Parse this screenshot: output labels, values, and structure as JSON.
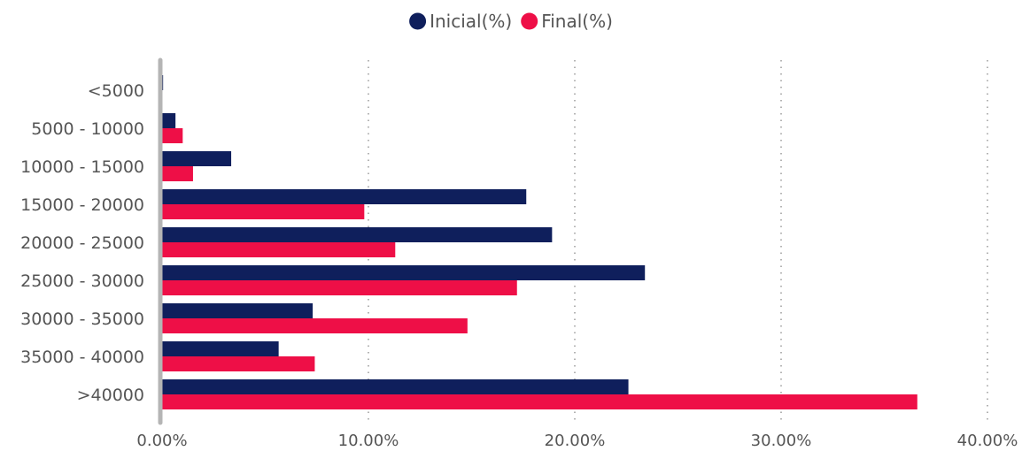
{
  "chart_data": {
    "type": "bar",
    "orientation": "horizontal",
    "categories": [
      "<5000",
      "5000 - 10000",
      "10000 - 15000",
      "15000 - 20000",
      "20000 - 25000",
      "25000 - 30000",
      "30000 - 35000",
      "35000 - 40000",
      ">40000"
    ],
    "series": [
      {
        "name": "Inicial(%)",
        "color": "#0f1f5c",
        "values": [
          0.05,
          0.65,
          3.35,
          17.65,
          18.9,
          23.4,
          7.3,
          5.65,
          22.6
        ]
      },
      {
        "name": "Final(%)",
        "color": "#ee0f47",
        "values": [
          0.0,
          1.0,
          1.5,
          9.8,
          11.3,
          17.2,
          14.8,
          7.4,
          36.6
        ]
      }
    ],
    "xlim": [
      0,
      40
    ],
    "x_ticks": [
      0,
      10,
      20,
      30,
      40
    ],
    "x_tick_labels": [
      "0.00%",
      "10.00%",
      "20.00%",
      "30.00%",
      "40.00%"
    ],
    "grid": "vertical-dotted",
    "legend_position": "top-center",
    "title": "",
    "xlabel": "",
    "ylabel": ""
  }
}
